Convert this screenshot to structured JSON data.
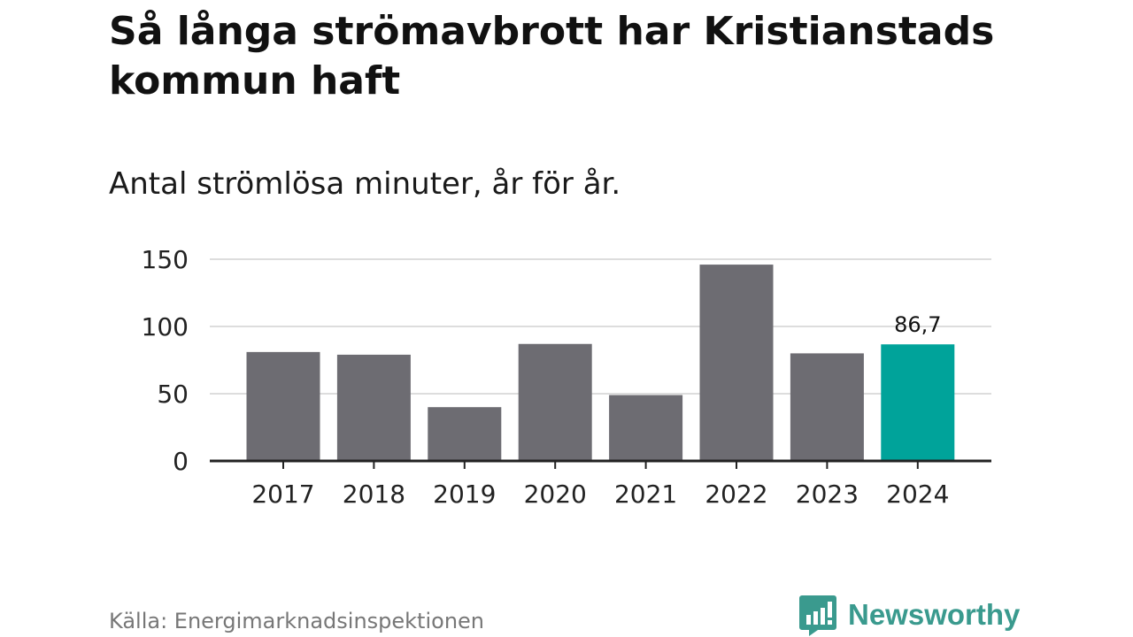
{
  "chart_data": {
    "type": "bar",
    "title": "Så långa strömavbrott har Kristianstads kommun haft",
    "subtitle": "Antal strömlösa minuter, år för år.",
    "categories": [
      "2017",
      "2018",
      "2019",
      "2020",
      "2021",
      "2022",
      "2023",
      "2024"
    ],
    "values": [
      81,
      79,
      40,
      87,
      49,
      146,
      80,
      86.7
    ],
    "data_labels": [
      {
        "category": "2024",
        "text": "86,7"
      }
    ],
    "highlight_category": "2024",
    "ylim": [
      0,
      150
    ],
    "yticks": [
      0,
      50,
      100,
      150
    ],
    "ytick_labels": [
      "0",
      "50",
      "100",
      "150"
    ],
    "xlabel": "",
    "ylabel": "",
    "grid": true,
    "legend": "none",
    "colors": {
      "bar": "#6d6c72",
      "highlight": "#00a39a",
      "grid": "#dddddd",
      "axis": "#222222"
    }
  },
  "source": "Källa: Energimarknadsinspektionen",
  "brand": {
    "name": "Newsworthy",
    "color": "#3a9a8e",
    "icon": "newsworthy-logo-icon"
  }
}
